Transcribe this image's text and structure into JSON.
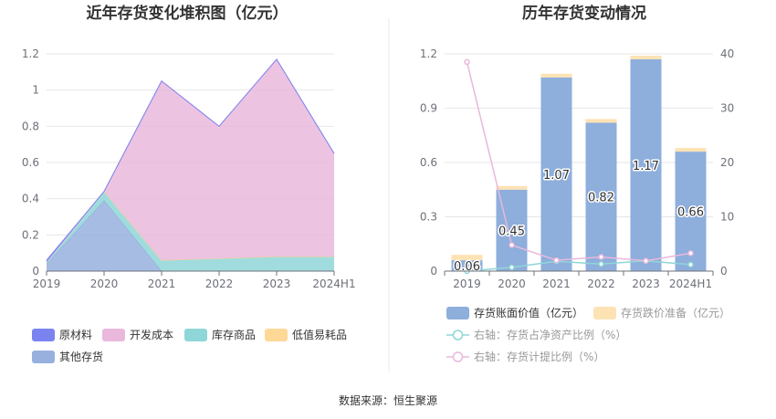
{
  "source": "数据来源：恒生聚源",
  "chart_data": [
    {
      "type": "area",
      "stacked": true,
      "title": "近年存货变化堆积图（亿元）",
      "categories": [
        "2019",
        "2020",
        "2021",
        "2022",
        "2023",
        "2024H1"
      ],
      "ylim": [
        0,
        1.2
      ],
      "yticks": [
        "0",
        "0.2",
        "0.4",
        "0.6",
        "0.8",
        "1",
        "1.2"
      ],
      "grid": true,
      "legend_position": "bottom",
      "series": [
        {
          "name": "原材料",
          "color": "#7b83f0",
          "values": [
            0.01,
            0.0,
            0.0,
            0.0,
            0.0,
            0.0
          ]
        },
        {
          "name": "开发成本",
          "color": "#e9b8dc",
          "values": [
            0.0,
            0.0,
            0.99,
            0.73,
            1.09,
            0.57
          ]
        },
        {
          "name": "库存商品",
          "color": "#8fd6d8",
          "values": [
            0.01,
            0.05,
            0.06,
            0.07,
            0.08,
            0.08
          ]
        },
        {
          "name": "低值易耗品",
          "color": "#fdd897",
          "values": [
            0.0,
            0.0,
            0.0,
            0.0,
            0.0,
            0.0
          ]
        },
        {
          "name": "其他存货",
          "color": "#97b0de",
          "values": [
            0.04,
            0.39,
            0.0,
            0.0,
            0.0,
            0.0
          ]
        }
      ]
    },
    {
      "type": "bar",
      "title": "历年存货变动情况",
      "categories": [
        "2019",
        "2020",
        "2021",
        "2022",
        "2023",
        "2024H1"
      ],
      "ylim": [
        0,
        1.2
      ],
      "yticks": [
        "0",
        "0.3",
        "0.6",
        "0.9",
        "1.2"
      ],
      "y2lim": [
        0,
        40
      ],
      "y2ticks": [
        "0",
        "10",
        "20",
        "30",
        "40"
      ],
      "grid": true,
      "legend_position": "bottom",
      "bars": [
        {
          "name": "存货账面价值（亿元）",
          "color": "#8eaedc",
          "values": [
            0.06,
            0.45,
            1.07,
            0.82,
            1.17,
            0.66
          ],
          "labels": [
            "0.06",
            "0.45",
            "1.07",
            "0.82",
            "1.17",
            "0.66"
          ]
        },
        {
          "name": "存货跌价准备（亿元）",
          "color": "#fde2b4",
          "values": [
            0.03,
            0.02,
            0.02,
            0.02,
            0.02,
            0.02
          ]
        }
      ],
      "lines": [
        {
          "name": "右轴：存货占净资产比例（%）",
          "color": "#8fd6d8",
          "axis": "right",
          "values": [
            0.0,
            0.7,
            1.8,
            1.3,
            1.9,
            1.2
          ]
        },
        {
          "name": "右轴：存货计提比例（%）",
          "color": "#e9b8dc",
          "axis": "right",
          "values": [
            38.5,
            4.8,
            2.0,
            2.6,
            1.9,
            3.3
          ]
        }
      ]
    }
  ]
}
